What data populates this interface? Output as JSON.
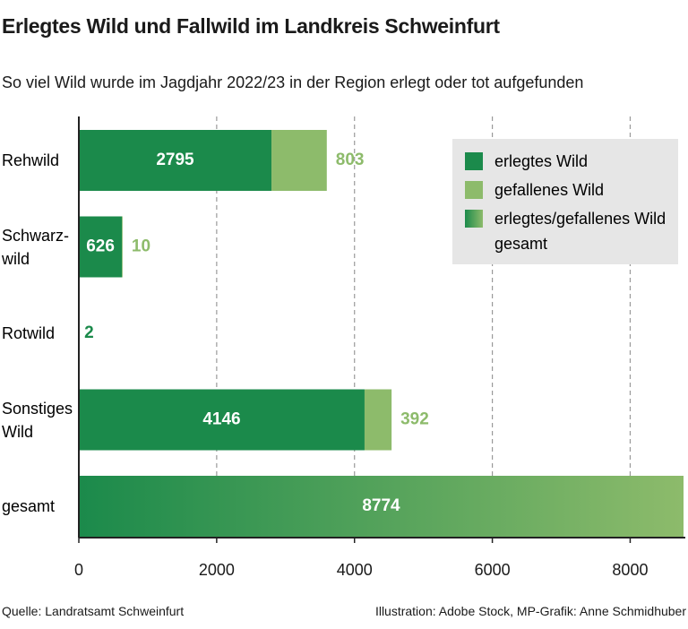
{
  "chart_data": {
    "type": "stacked-barh",
    "title": "Erlegtes Wild und Fallwild im Landkreis Schweinfurt",
    "subtitle": "So viel Wild wurde im Jagdjahr 2022/23 in der Region erlegt oder tot aufgefunden",
    "categories": [
      "Rehwild",
      "Schwarz-\nwild",
      "Rotwild",
      "Sonstiges\nWild",
      "gesamt"
    ],
    "series": [
      {
        "name": "erlegtes Wild",
        "color": "#1b8a4b",
        "values": [
          2795,
          626,
          2,
          4146,
          null
        ]
      },
      {
        "name": "gefallenes Wild",
        "color": "#8dbb6b",
        "values": [
          803,
          10,
          null,
          392,
          null
        ]
      },
      {
        "name": "erlegtes/gefallenes Wild gesamt",
        "color": [
          "#1b8a4b",
          "#8dbb6b"
        ],
        "values": [
          null,
          null,
          null,
          null,
          8774
        ]
      }
    ],
    "xlim": [
      0,
      8800
    ],
    "xticks": [
      0,
      2000,
      4000,
      6000,
      8000
    ],
    "grid": true,
    "legend": "upper right",
    "source": "Quelle: Landratsamt Schweinfurt",
    "credit": "Illustration: Adobe Stock, MP-Grafik: Anne Schmidhuber"
  }
}
